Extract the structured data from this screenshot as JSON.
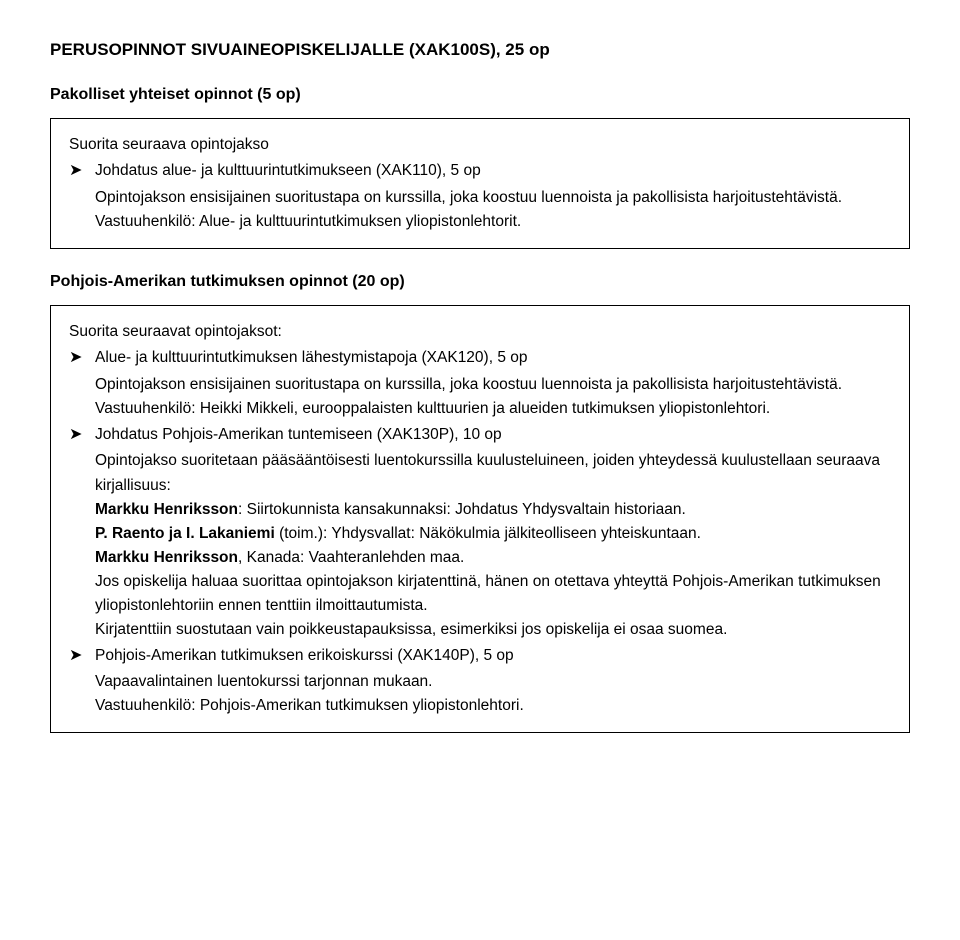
{
  "title": "PERUSOPINNOT SIVUAINEOPISKELIJALLE (XAK100S), 25 op",
  "section1": {
    "heading": "Pakolliset yhteiset opinnot (5 op)",
    "intro": "Suorita seuraava opintojakso",
    "bullet": "Johdatus alue- ja kulttuurintutkimukseen (XAK110), 5 op",
    "para1": "Opintojakson ensisijainen suoritustapa on kurssilla, joka koostuu luennoista ja pakollisista harjoitustehtävistä.",
    "para2": "Vastuuhenkilö: Alue- ja kulttuurintutkimuksen yliopistonlehtorit."
  },
  "section2": {
    "heading": "Pohjois-Amerikan tutkimuksen opinnot (20 op)",
    "intro": "Suorita seuraavat opintojaksot:",
    "item1": {
      "bullet": "Alue- ja kulttuurintutkimuksen lähestymistapoja (XAK120), 5 op",
      "p1": "Opintojakson ensisijainen suoritustapa on kurssilla, joka koostuu luennoista ja pakollisista harjoitustehtävistä. Vastuuhenkilö: Heikki Mikkeli, eurooppalaisten kulttuurien ja alueiden tutkimuksen yliopistonlehtori."
    },
    "item2": {
      "bullet": "Johdatus Pohjois-Amerikan tuntemiseen (XAK130P), 10 op",
      "p1": "Opintojakso suoritetaan pääsääntöisesti luentokurssilla kuulusteluineen, joiden yhteydessä kuulustellaan seuraava kirjallisuus:",
      "ref1a": "Markku Henriksson",
      "ref1b": ": Siirtokunnista kansakunnaksi: Johdatus Yhdysvaltain historiaan.",
      "ref2a": "P. Raento ja I. Lakaniemi",
      "ref2b": " (toim.): Yhdysvallat: Näkökulmia jälkiteolliseen yhteiskuntaan.",
      "ref3a": "Markku Henriksson",
      "ref3b": ", Kanada: Vaahteranlehden maa.",
      "p2": "Jos opiskelija haluaa suorittaa opintojakson kirjatenttinä, hänen on otettava yhteyttä Pohjois-Amerikan tutkimuksen yliopistonlehtoriin ennen tenttiin ilmoittautumista.",
      "p3": "Kirjatenttiin suostutaan vain poikkeustapauksissa, esimerkiksi jos opiskelija ei osaa suomea."
    },
    "item3": {
      "bullet": "Pohjois-Amerikan tutkimuksen erikoiskurssi (XAK140P), 5 op",
      "p1": "Vapaavalintainen luentokurssi tarjonnan mukaan.",
      "p2": "Vastuuhenkilö: Pohjois-Amerikan tutkimuksen yliopistonlehtori."
    }
  },
  "arrow": "➤"
}
